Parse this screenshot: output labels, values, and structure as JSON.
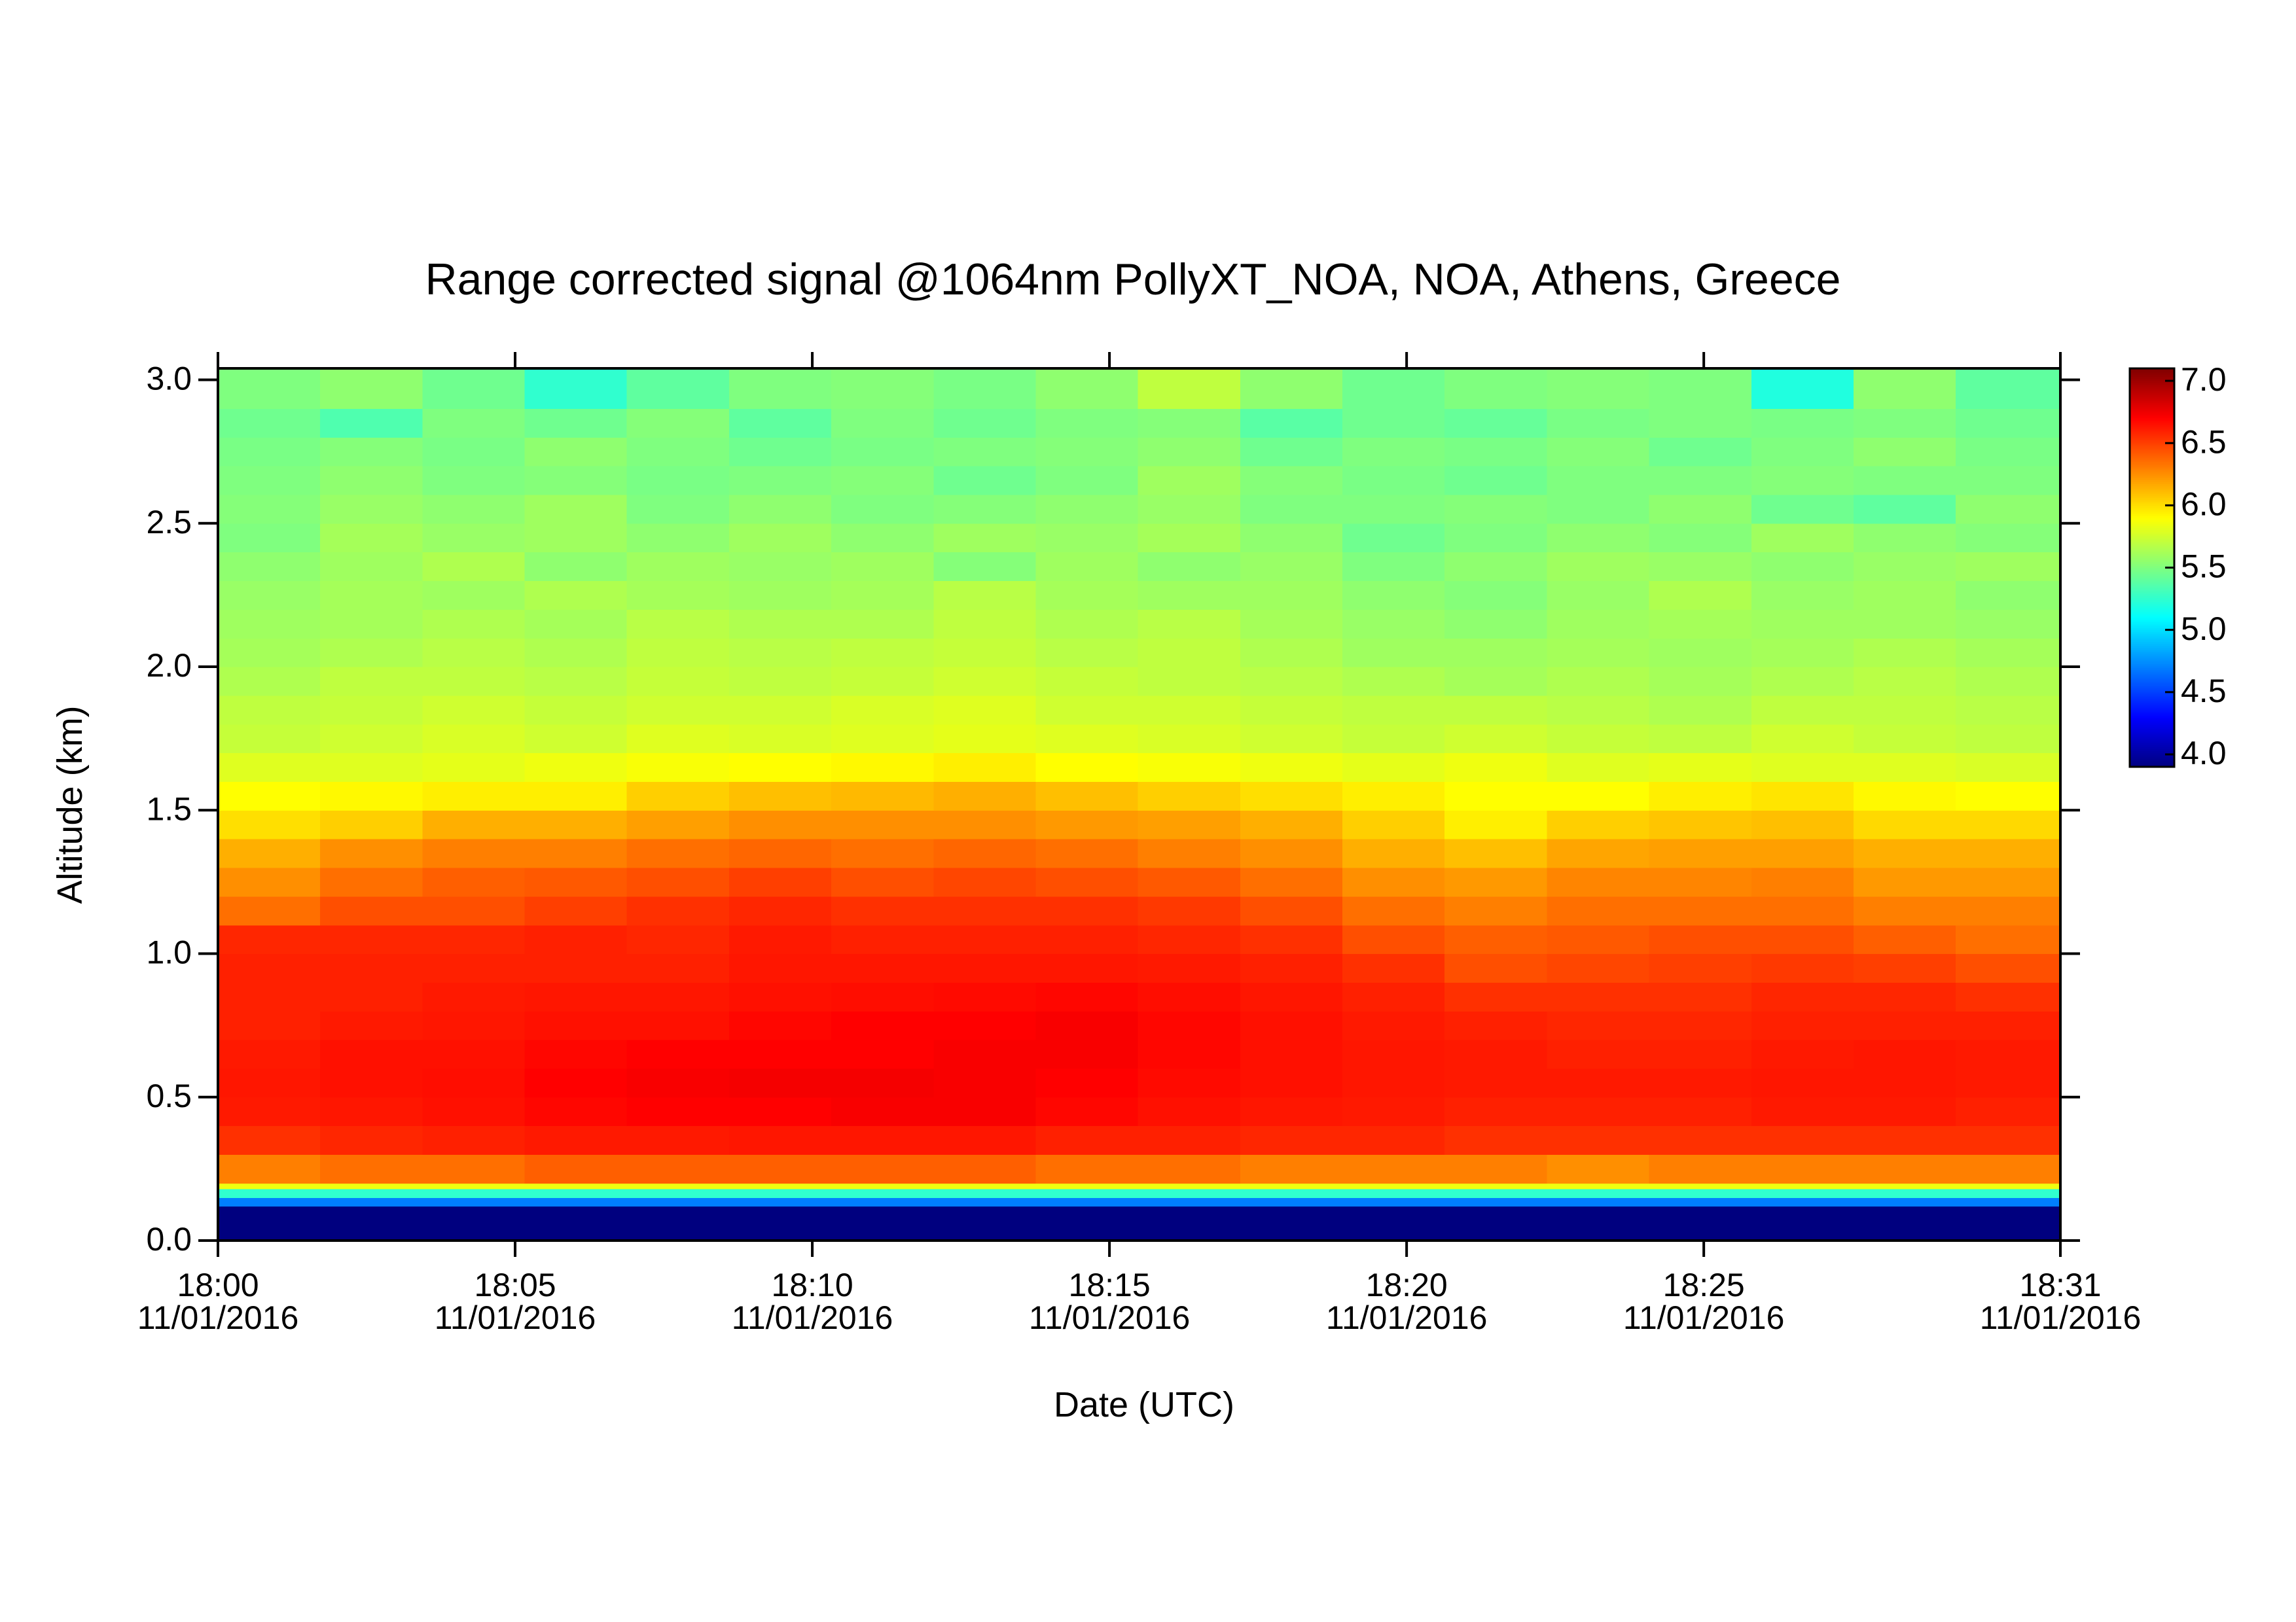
{
  "chart_data": {
    "type": "heatmap",
    "title": "Range corrected signal @1064nm  PollyXT_NOA, NOA, Athens, Greece",
    "xlabel": "Date (UTC)",
    "ylabel": "Altitude (km)",
    "xlim": [
      0,
      31
    ],
    "xticks": [
      {
        "value": 0,
        "label": "18:00\n11/01/2016"
      },
      {
        "value": 5,
        "label": "18:05\n11/01/2016"
      },
      {
        "value": 10,
        "label": "18:10\n11/01/2016"
      },
      {
        "value": 15,
        "label": "18:15\n11/01/2016"
      },
      {
        "value": 20,
        "label": "18:20\n11/01/2016"
      },
      {
        "value": 25,
        "label": "18:25\n11/01/2016"
      },
      {
        "value": 31,
        "label": "18:31\n11/01/2016"
      }
    ],
    "ylim": [
      0,
      3.04
    ],
    "yticks": [
      {
        "value": 0,
        "label": "0.0"
      },
      0.5,
      {
        "value": 1,
        "label": "1.0"
      },
      1.5,
      {
        "value": 2,
        "label": "2.0"
      },
      2.5,
      {
        "value": 3,
        "label": "3.0"
      }
    ],
    "zlim": [
      3.9,
      7.1
    ],
    "zticks": [
      {
        "value": 4,
        "label": "4.0"
      },
      4.5,
      {
        "value": 5,
        "label": "5.0"
      },
      5.5,
      {
        "value": 6,
        "label": "6.0"
      },
      6.5,
      {
        "value": 7,
        "label": "7.0"
      }
    ],
    "colormap": [
      "#00007f",
      "#0000ff",
      "#007fff",
      "#00ffff",
      "#7fff7f",
      "#ffff00",
      "#ff7f00",
      "#ff0000",
      "#7f0000"
    ],
    "x_bins": [
      0,
      1.72,
      3.44,
      5.16,
      6.88,
      8.6,
      10.32,
      12.04,
      13.76,
      15.48,
      17.2,
      18.92,
      20.64,
      22.36,
      24.08,
      25.8,
      27.52,
      29.24,
      31
    ],
    "y_bins": [
      0,
      0.12,
      0.15,
      0.18,
      0.2,
      0.3,
      0.4,
      0.5,
      0.6,
      0.7,
      0.8,
      0.9,
      1.0,
      1.1,
      1.2,
      1.3,
      1.4,
      1.5,
      1.6,
      1.7,
      1.8,
      1.9,
      2.0,
      2.1,
      2.2,
      2.3,
      2.4,
      2.5,
      2.6,
      2.7,
      2.8,
      2.9,
      3.04
    ],
    "z": [
      [
        3.9,
        3.9,
        3.9,
        3.9,
        3.9,
        3.9,
        3.9,
        3.9,
        3.9,
        3.9,
        3.9,
        3.9,
        3.9,
        3.9,
        3.9,
        3.9,
        3.9,
        3.9
      ],
      [
        4.7,
        4.7,
        4.7,
        4.7,
        4.7,
        4.7,
        4.7,
        4.7,
        4.7,
        4.7,
        4.7,
        4.7,
        4.7,
        4.7,
        4.7,
        4.7,
        4.7,
        4.7
      ],
      [
        5.25,
        5.25,
        5.25,
        5.25,
        5.25,
        5.25,
        5.25,
        5.25,
        5.25,
        5.25,
        5.25,
        5.25,
        5.25,
        5.25,
        5.25,
        5.25,
        5.25,
        5.25
      ],
      [
        5.85,
        5.85,
        5.85,
        5.85,
        5.85,
        5.85,
        5.85,
        5.85,
        5.85,
        5.85,
        5.85,
        5.85,
        5.85,
        5.85,
        5.85,
        5.85,
        5.85,
        5.85
      ],
      [
        6.3,
        6.35,
        6.35,
        6.4,
        6.4,
        6.4,
        6.4,
        6.4,
        6.35,
        6.35,
        6.3,
        6.3,
        6.3,
        6.25,
        6.3,
        6.3,
        6.3,
        6.3
      ],
      [
        6.55,
        6.58,
        6.6,
        6.62,
        6.62,
        6.63,
        6.63,
        6.63,
        6.6,
        6.6,
        6.58,
        6.58,
        6.55,
        6.55,
        6.55,
        6.55,
        6.55,
        6.55
      ],
      [
        6.62,
        6.63,
        6.65,
        6.68,
        6.7,
        6.7,
        6.72,
        6.72,
        6.68,
        6.65,
        6.63,
        6.62,
        6.6,
        6.6,
        6.6,
        6.62,
        6.62,
        6.6
      ],
      [
        6.63,
        6.65,
        6.66,
        6.7,
        6.72,
        6.73,
        6.73,
        6.72,
        6.7,
        6.67,
        6.65,
        6.63,
        6.62,
        6.62,
        6.62,
        6.63,
        6.63,
        6.62
      ],
      [
        6.62,
        6.65,
        6.65,
        6.68,
        6.7,
        6.7,
        6.7,
        6.72,
        6.72,
        6.68,
        6.65,
        6.63,
        6.62,
        6.6,
        6.6,
        6.62,
        6.63,
        6.62
      ],
      [
        6.6,
        6.62,
        6.63,
        6.65,
        6.65,
        6.68,
        6.7,
        6.7,
        6.72,
        6.68,
        6.65,
        6.62,
        6.6,
        6.58,
        6.58,
        6.6,
        6.6,
        6.6
      ],
      [
        6.6,
        6.6,
        6.62,
        6.63,
        6.63,
        6.65,
        6.66,
        6.67,
        6.68,
        6.66,
        6.63,
        6.6,
        6.55,
        6.55,
        6.55,
        6.58,
        6.58,
        6.55
      ],
      [
        6.6,
        6.6,
        6.6,
        6.6,
        6.6,
        6.63,
        6.63,
        6.63,
        6.63,
        6.62,
        6.6,
        6.55,
        6.45,
        6.48,
        6.5,
        6.52,
        6.5,
        6.45
      ],
      [
        6.58,
        6.58,
        6.58,
        6.6,
        6.58,
        6.62,
        6.6,
        6.6,
        6.6,
        6.58,
        6.55,
        6.45,
        6.4,
        6.42,
        6.45,
        6.45,
        6.4,
        6.35
      ],
      [
        6.35,
        6.45,
        6.45,
        6.5,
        6.55,
        6.58,
        6.55,
        6.55,
        6.55,
        6.52,
        6.45,
        6.35,
        6.3,
        6.35,
        6.35,
        6.35,
        6.3,
        6.3
      ],
      [
        6.25,
        6.35,
        6.4,
        6.42,
        6.45,
        6.5,
        6.45,
        6.48,
        6.45,
        6.42,
        6.35,
        6.25,
        6.22,
        6.28,
        6.28,
        6.3,
        6.22,
        6.22
      ],
      [
        6.15,
        6.25,
        6.3,
        6.3,
        6.35,
        6.38,
        6.35,
        6.38,
        6.35,
        6.3,
        6.25,
        6.15,
        6.1,
        6.18,
        6.2,
        6.2,
        6.15,
        6.15
      ],
      [
        6.0,
        6.05,
        6.15,
        6.15,
        6.2,
        6.25,
        6.25,
        6.25,
        6.22,
        6.2,
        6.15,
        6.05,
        5.95,
        6.05,
        6.08,
        6.1,
        6.02,
        6.02
      ],
      [
        5.9,
        5.92,
        5.95,
        5.95,
        6.05,
        6.1,
        6.12,
        6.15,
        6.1,
        6.05,
        6.0,
        5.95,
        5.9,
        5.9,
        5.95,
        5.98,
        5.92,
        5.9
      ],
      [
        5.8,
        5.8,
        5.82,
        5.85,
        5.88,
        5.9,
        5.92,
        5.95,
        5.9,
        5.88,
        5.85,
        5.82,
        5.85,
        5.8,
        5.82,
        5.8,
        5.8,
        5.78
      ],
      [
        5.72,
        5.75,
        5.78,
        5.75,
        5.8,
        5.78,
        5.8,
        5.82,
        5.8,
        5.78,
        5.75,
        5.72,
        5.75,
        5.72,
        5.7,
        5.75,
        5.72,
        5.7
      ],
      [
        5.7,
        5.72,
        5.75,
        5.72,
        5.75,
        5.75,
        5.78,
        5.8,
        5.75,
        5.75,
        5.72,
        5.7,
        5.7,
        5.68,
        5.65,
        5.7,
        5.7,
        5.68
      ],
      [
        5.65,
        5.7,
        5.7,
        5.68,
        5.72,
        5.7,
        5.72,
        5.75,
        5.72,
        5.7,
        5.68,
        5.65,
        5.62,
        5.65,
        5.62,
        5.65,
        5.68,
        5.65
      ],
      [
        5.62,
        5.65,
        5.68,
        5.65,
        5.7,
        5.68,
        5.7,
        5.72,
        5.68,
        5.7,
        5.65,
        5.6,
        5.6,
        5.62,
        5.6,
        5.62,
        5.65,
        5.62
      ],
      [
        5.6,
        5.62,
        5.65,
        5.62,
        5.68,
        5.65,
        5.65,
        5.7,
        5.65,
        5.68,
        5.62,
        5.58,
        5.55,
        5.6,
        5.62,
        5.6,
        5.6,
        5.58
      ],
      [
        5.58,
        5.62,
        5.6,
        5.65,
        5.62,
        5.6,
        5.62,
        5.68,
        5.62,
        5.6,
        5.6,
        5.55,
        5.52,
        5.58,
        5.65,
        5.58,
        5.6,
        5.55
      ],
      [
        5.55,
        5.6,
        5.65,
        5.55,
        5.6,
        5.58,
        5.6,
        5.52,
        5.6,
        5.55,
        5.58,
        5.5,
        5.55,
        5.6,
        5.58,
        5.55,
        5.58,
        5.6
      ],
      [
        5.5,
        5.62,
        5.58,
        5.6,
        5.55,
        5.6,
        5.55,
        5.6,
        5.58,
        5.62,
        5.55,
        5.45,
        5.5,
        5.55,
        5.52,
        5.6,
        5.55,
        5.52
      ],
      [
        5.52,
        5.58,
        5.55,
        5.6,
        5.5,
        5.55,
        5.5,
        5.52,
        5.55,
        5.58,
        5.5,
        5.5,
        5.52,
        5.5,
        5.55,
        5.45,
        5.4,
        5.55
      ],
      [
        5.5,
        5.55,
        5.5,
        5.52,
        5.48,
        5.5,
        5.52,
        5.45,
        5.5,
        5.6,
        5.52,
        5.48,
        5.45,
        5.5,
        5.5,
        5.52,
        5.5,
        5.5
      ],
      [
        5.48,
        5.52,
        5.48,
        5.55,
        5.5,
        5.45,
        5.48,
        5.5,
        5.52,
        5.55,
        5.45,
        5.5,
        5.48,
        5.52,
        5.45,
        5.5,
        5.55,
        5.48
      ],
      [
        5.45,
        5.35,
        5.5,
        5.45,
        5.52,
        5.4,
        5.5,
        5.45,
        5.5,
        5.52,
        5.38,
        5.45,
        5.42,
        5.48,
        5.5,
        5.48,
        5.5,
        5.45
      ],
      [
        5.5,
        5.55,
        5.45,
        5.25,
        5.4,
        5.5,
        5.52,
        5.48,
        5.55,
        5.7,
        5.55,
        5.45,
        5.5,
        5.52,
        5.5,
        5.2,
        5.55,
        5.4
      ]
    ]
  }
}
